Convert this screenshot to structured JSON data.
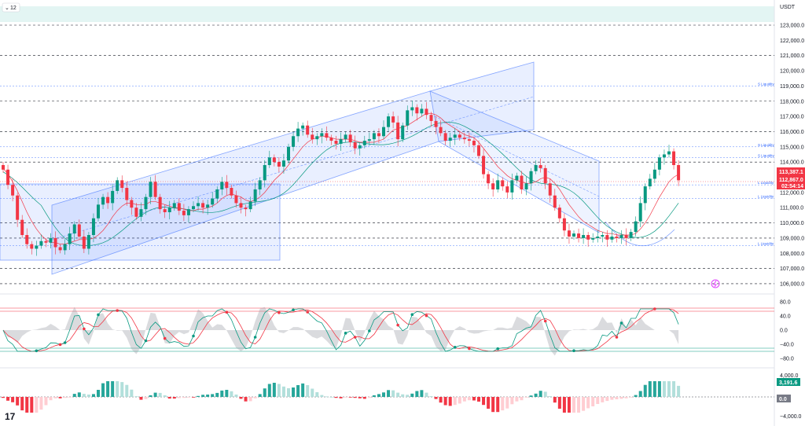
{
  "header": {
    "interval_label": "12",
    "currency": "USDT"
  },
  "logo": "17",
  "colors": {
    "up": "#089981",
    "down": "#f23645",
    "channel": "#2962ff",
    "ma": "#f23645",
    "ma2": "#089981",
    "grid": "#131722",
    "liq": "#2962ff",
    "osc_fast": "#089981",
    "osc_slow": "#f23645"
  },
  "price_axis": {
    "ticks": [
      "123,000.0",
      "122,000.0",
      "121,000.0",
      "120,000.0",
      "119,000.0",
      "118,000.0",
      "117,000.0",
      "116,000.0",
      "115,000.0",
      "114,000.0",
      "113,000.0",
      "112,000.0",
      "111,000.0",
      "110,000.0",
      "109,000.0",
      "108,000.0",
      "107,000.0",
      "106,000.0"
    ],
    "current_price": "113,387.1",
    "secondary_price": "112,867.0",
    "countdown": "02:54:14"
  },
  "liquidity_labels": [
    "S Liquidity",
    "S Liquidity",
    "S Liquidity",
    "L Liquidity",
    "L Liquidity",
    "L Liquidity"
  ],
  "oscillator_axis": {
    "ticks": [
      "80.0",
      "40.0",
      "0.0",
      "−40.0",
      "−80.0"
    ]
  },
  "histogram_axis": {
    "ticks": [
      "4,000.0",
      "−4,000.0"
    ],
    "value_badge": "3,191.6",
    "zero_badge": "0.0"
  },
  "chart_data": {
    "type": "candlestick",
    "title": "",
    "ylim": [
      105500,
      123600
    ],
    "dashed_levels": [
      123000,
      121000,
      118000,
      116000,
      114000,
      110000,
      109000,
      107000,
      106000
    ],
    "liquidity_levels": [
      119000,
      115000,
      114300,
      112500,
      111600,
      108500
    ],
    "close": [
      113500,
      112500,
      111800,
      110200,
      109200,
      108600,
      108300,
      108500,
      108800,
      108700,
      109000,
      108400,
      108200,
      108600,
      109300,
      109900,
      109100,
      108300,
      109200,
      110300,
      111200,
      111700,
      111300,
      112100,
      112800,
      112300,
      111500,
      111000,
      110400,
      110900,
      111700,
      112700,
      111700,
      110900,
      110700,
      111000,
      111300,
      110800,
      110500,
      110900,
      111100,
      111300,
      111000,
      111200,
      111600,
      112200,
      112700,
      112300,
      111800,
      111300,
      111000,
      110900,
      111400,
      112200,
      112800,
      113800,
      114300,
      114000,
      113700,
      114100,
      115000,
      115700,
      116200,
      116400,
      115800,
      115500,
      115700,
      115900,
      115600,
      115400,
      115200,
      115500,
      115800,
      115300,
      114900,
      115100,
      115400,
      115500,
      115900,
      115700,
      116300,
      117000,
      116600,
      115500,
      116400,
      117400,
      117600,
      117200,
      117500,
      117100,
      116700,
      116300,
      115900,
      115400,
      115600,
      115800,
      115600,
      115500,
      115400,
      115100,
      114400,
      113200,
      112600,
      112200,
      112800,
      112400,
      112000,
      112800,
      113100,
      112200,
      112600,
      113400,
      113800,
      113600,
      112600,
      111800,
      111000,
      110300,
      109500,
      109100,
      109300,
      109000,
      109200,
      108900,
      109000,
      109100,
      109200,
      108900,
      109100,
      109000,
      109200,
      109000,
      109400,
      110100,
      111300,
      112400,
      112900,
      113500,
      114300,
      114500,
      114700,
      113800,
      112800
    ],
    "ma_fast": [
      113600,
      113200,
      112700,
      112100,
      111400,
      110700,
      110100,
      109600,
      109200,
      108900,
      108700,
      108700,
      108600,
      108600,
      108700,
      108800,
      108900,
      108900,
      108900,
      109000,
      109200,
      109500,
      109900,
      110400,
      110800,
      111100,
      111300,
      111300,
      111200,
      111200,
      111200,
      111400,
      111400,
      111300,
      111200,
      111100,
      111000,
      111000,
      110900,
      110800,
      110800,
      110900,
      110900,
      111000,
      111100,
      111300,
      111600,
      111800,
      111900,
      111800,
      111700,
      111500,
      111400,
      111500,
      111700,
      112000,
      112400,
      112800,
      113100,
      113400,
      113800,
      114200,
      114600,
      115000,
      115300,
      115500,
      115600,
      115700,
      115700,
      115600,
      115500,
      115500,
      115500,
      115500,
      115400,
      115300,
      115300,
      115300,
      115300,
      115400,
      115500,
      115800,
      116100,
      116200,
      116300,
      116400,
      116600,
      116800,
      117000,
      117200,
      117200,
      117100,
      116900,
      116600,
      116400,
      116200,
      116000,
      115800,
      115700,
      115600,
      115300,
      114900,
      114500,
      114100,
      113700,
      113400,
      113100,
      112900,
      112800,
      112700,
      112600,
      112600,
      112700,
      112900,
      113000,
      112900,
      112600,
      112200,
      111700,
      111200,
      110800,
      110400,
      110100,
      109900,
      109700,
      109500,
      109400,
      109300,
      109300,
      109200,
      109200,
      109200,
      109200,
      109300,
      109600,
      110000,
      110500,
      111100,
      111700,
      112200,
      112700,
      113000,
      113200
    ]
  }
}
